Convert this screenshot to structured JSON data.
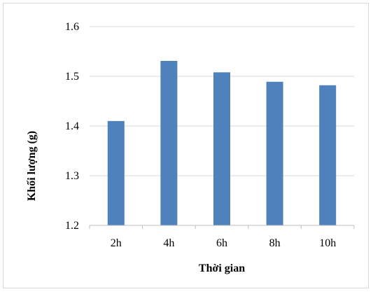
{
  "chart_data": {
    "type": "bar",
    "categories": [
      "2h",
      "4h",
      "6h",
      "8h",
      "10h"
    ],
    "values": [
      1.41,
      1.531,
      1.508,
      1.489,
      1.482
    ],
    "title": "",
    "xlabel": "Thời gian",
    "ylabel": "Khối lượng (g)",
    "ylim": [
      1.2,
      1.6
    ],
    "yticks": [
      "1.2",
      "1.3",
      "1.4",
      "1.5",
      "1.6"
    ],
    "grid": true,
    "legend": "none",
    "colors": {
      "bar": "#4f81bd",
      "grid": "#d9d9d9",
      "axis": "#bfbfbf"
    }
  }
}
